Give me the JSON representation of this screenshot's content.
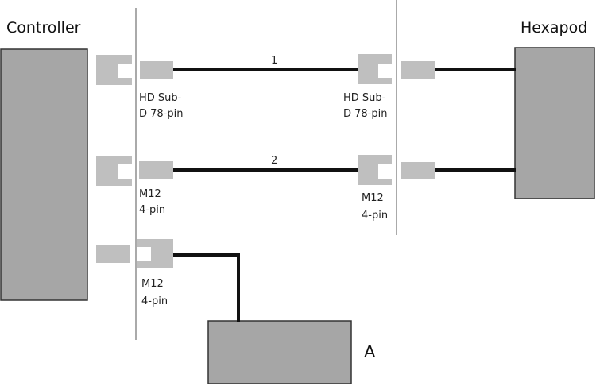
{
  "colors": {
    "device_fill": "#a6a6a6",
    "device_stroke": "#333333",
    "connector": "#bfbfbf",
    "cable": "#111111",
    "divider": "#555555"
  },
  "devices": {
    "controller": "Controller",
    "hexapod": "Hexapod",
    "a": "A"
  },
  "cables": {
    "one": "1",
    "two": "2"
  },
  "connectors": {
    "row1_left": [
      "HD Sub-",
      "D 78-pin"
    ],
    "row1_right": [
      "HD Sub-",
      "D 78-pin"
    ],
    "row2_left": [
      "M12",
      "4-pin"
    ],
    "row2_right": [
      "M12",
      "4-pin"
    ],
    "row3": [
      "M12",
      "4-pin"
    ]
  }
}
